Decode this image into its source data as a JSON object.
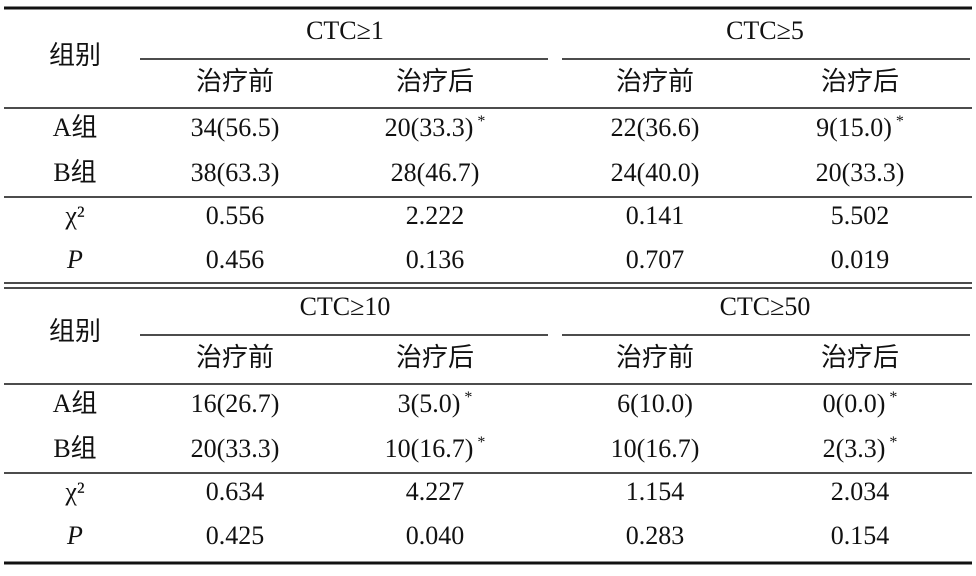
{
  "blocks": [
    {
      "row_header": "组别",
      "groups": [
        "CTC≥1",
        "CTC≥5"
      ],
      "subheaders": [
        "治疗前",
        "治疗后",
        "治疗前",
        "治疗后"
      ],
      "rows": [
        {
          "label": "A组",
          "cells": [
            {
              "text": "34(56.5)"
            },
            {
              "text": "20(33.3)",
              "mark": "*"
            },
            {
              "text": "22(36.6)"
            },
            {
              "text": "9(15.0)",
              "mark": "*"
            }
          ]
        },
        {
          "label": "B组",
          "cells": [
            {
              "text": "38(63.3)"
            },
            {
              "text": "28(46.7)"
            },
            {
              "text": "24(40.0)"
            },
            {
              "text": "20(33.3)"
            }
          ]
        },
        {
          "label": "χ²",
          "cells": [
            {
              "text": "0.556"
            },
            {
              "text": "2.222"
            },
            {
              "text": "0.141"
            },
            {
              "text": "5.502"
            }
          ]
        },
        {
          "label": "P",
          "cells": [
            {
              "text": "0.456"
            },
            {
              "text": "0.136"
            },
            {
              "text": "0.707"
            },
            {
              "text": "0.019"
            }
          ]
        }
      ]
    },
    {
      "row_header": "组别",
      "groups": [
        "CTC≥10",
        "CTC≥50"
      ],
      "subheaders": [
        "治疗前",
        "治疗后",
        "治疗前",
        "治疗后"
      ],
      "rows": [
        {
          "label": "A组",
          "cells": [
            {
              "text": "16(26.7)"
            },
            {
              "text": "3(5.0)",
              "mark": "*"
            },
            {
              "text": "6(10.0)"
            },
            {
              "text": "0(0.0)",
              "mark": "*"
            }
          ]
        },
        {
          "label": "B组",
          "cells": [
            {
              "text": "20(33.3)"
            },
            {
              "text": "10(16.7)",
              "mark": "*"
            },
            {
              "text": "10(16.7)"
            },
            {
              "text": "2(3.3)",
              "mark": "*"
            }
          ]
        },
        {
          "label": "χ²",
          "cells": [
            {
              "text": "0.634"
            },
            {
              "text": "4.227"
            },
            {
              "text": "1.154"
            },
            {
              "text": "2.034"
            }
          ]
        },
        {
          "label": "P",
          "cells": [
            {
              "text": "0.425"
            },
            {
              "text": "0.040"
            },
            {
              "text": "0.283"
            },
            {
              "text": "0.154"
            }
          ]
        }
      ]
    }
  ]
}
